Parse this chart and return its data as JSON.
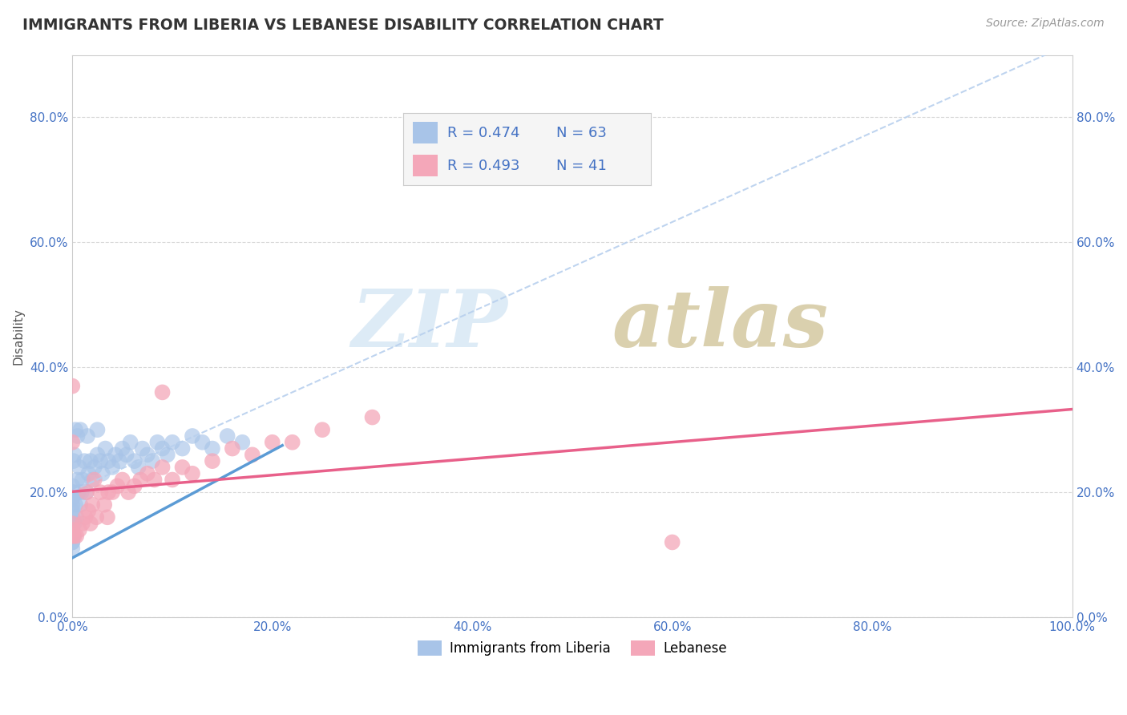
{
  "title": "IMMIGRANTS FROM LIBERIA VS LEBANESE DISABILITY CORRELATION CHART",
  "source": "Source: ZipAtlas.com",
  "ylabel": "Disability",
  "xlim": [
    0.0,
    1.0
  ],
  "ylim": [
    0.0,
    0.9
  ],
  "x_ticks": [
    0.0,
    0.2,
    0.4,
    0.6,
    0.8,
    1.0
  ],
  "x_tick_labels": [
    "0.0%",
    "20.0%",
    "40.0%",
    "60.0%",
    "80.0%",
    "100.0%"
  ],
  "y_ticks": [
    0.0,
    0.2,
    0.4,
    0.6,
    0.8
  ],
  "y_tick_labels": [
    "0.0%",
    "20.0%",
    "40.0%",
    "60.0%",
    "80.0%"
  ],
  "series": [
    {
      "name": "Immigrants from Liberia",
      "R": 0.474,
      "N": 63,
      "color": "#a8c4e8",
      "trend_color": "#5b9bd5",
      "trend_style": "solid",
      "trend_x_start": 0.0,
      "trend_x_end": 0.21,
      "trend_y_start": 0.095,
      "trend_y_end": 0.275,
      "full_trend_color": "#b0cce8",
      "full_trend_style": "dashed",
      "x": [
        0.0,
        0.0,
        0.0,
        0.0,
        0.0,
        0.0,
        0.0,
        0.0,
        0.0,
        0.0,
        0.001,
        0.001,
        0.002,
        0.003,
        0.004,
        0.005,
        0.006,
        0.007,
        0.008,
        0.009,
        0.01,
        0.012,
        0.014,
        0.016,
        0.018,
        0.02,
        0.022,
        0.025,
        0.028,
        0.03,
        0.033,
        0.036,
        0.04,
        0.043,
        0.047,
        0.05,
        0.054,
        0.058,
        0.062,
        0.066,
        0.07,
        0.075,
        0.08,
        0.085,
        0.09,
        0.095,
        0.1,
        0.11,
        0.12,
        0.13,
        0.14,
        0.155,
        0.17,
        0.005,
        0.003,
        0.002,
        0.001,
        0.0,
        0.0,
        0.0,
        0.008,
        0.015,
        0.025
      ],
      "y": [
        0.12,
        0.13,
        0.14,
        0.15,
        0.16,
        0.17,
        0.18,
        0.19,
        0.11,
        0.12,
        0.13,
        0.2,
        0.15,
        0.18,
        0.16,
        0.22,
        0.2,
        0.24,
        0.18,
        0.2,
        0.22,
        0.25,
        0.2,
        0.23,
        0.25,
        0.22,
        0.24,
        0.26,
        0.25,
        0.23,
        0.27,
        0.25,
        0.24,
        0.26,
        0.25,
        0.27,
        0.26,
        0.28,
        0.25,
        0.24,
        0.27,
        0.26,
        0.25,
        0.28,
        0.27,
        0.26,
        0.28,
        0.27,
        0.29,
        0.28,
        0.27,
        0.29,
        0.28,
        0.29,
        0.3,
        0.26,
        0.25,
        0.2,
        0.21,
        0.13,
        0.3,
        0.29,
        0.3
      ]
    },
    {
      "name": "Lebanese",
      "R": 0.493,
      "N": 41,
      "color": "#f4a7b9",
      "trend_color": "#e8608a",
      "trend_style": "solid",
      "x": [
        0.0,
        0.0,
        0.0,
        0.0,
        0.0,
        0.002,
        0.004,
        0.007,
        0.01,
        0.013,
        0.016,
        0.02,
        0.024,
        0.028,
        0.032,
        0.036,
        0.04,
        0.045,
        0.05,
        0.056,
        0.062,
        0.068,
        0.075,
        0.082,
        0.09,
        0.1,
        0.11,
        0.12,
        0.14,
        0.16,
        0.18,
        0.2,
        0.22,
        0.25,
        0.3,
        0.014,
        0.018,
        0.022,
        0.6,
        0.09,
        0.035
      ],
      "y": [
        0.13,
        0.14,
        0.15,
        0.28,
        0.37,
        0.13,
        0.13,
        0.14,
        0.15,
        0.16,
        0.17,
        0.18,
        0.16,
        0.2,
        0.18,
        0.2,
        0.2,
        0.21,
        0.22,
        0.2,
        0.21,
        0.22,
        0.23,
        0.22,
        0.24,
        0.22,
        0.24,
        0.23,
        0.25,
        0.27,
        0.26,
        0.28,
        0.28,
        0.3,
        0.32,
        0.2,
        0.15,
        0.22,
        0.12,
        0.36,
        0.16
      ]
    }
  ],
  "watermark_zip": "ZIP",
  "watermark_atlas": "atlas",
  "background_color": "#ffffff",
  "grid_color": "#d0d0d0",
  "title_color": "#333333",
  "label_color": "#4472c4",
  "tick_color": "#4472c4",
  "legend_r_n_color": "#4472c4"
}
